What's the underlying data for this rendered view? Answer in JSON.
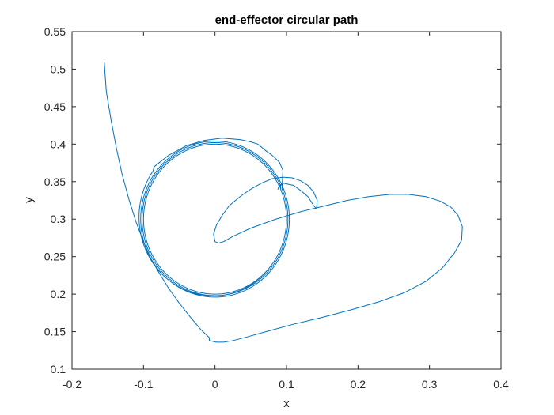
{
  "chart_data": {
    "type": "line",
    "title": "end-effector circular path",
    "xlabel": "x",
    "ylabel": "y",
    "xlim": [
      -0.2,
      0.4
    ],
    "ylim": [
      0.1,
      0.55
    ],
    "x_ticks": [
      -0.2,
      -0.1,
      0,
      0.1,
      0.2,
      0.3,
      0.4
    ],
    "y_ticks": [
      0.1,
      0.15,
      0.2,
      0.25,
      0.3,
      0.35,
      0.4,
      0.45,
      0.5,
      0.55
    ],
    "x_tick_labels": [
      "-0.2",
      "-0.1",
      "0",
      "0.1",
      "0.2",
      "0.3",
      "0.4"
    ],
    "y_tick_labels": [
      "0.1",
      "0.15",
      "0.2",
      "0.25",
      "0.3",
      "0.35",
      "0.4",
      "0.45",
      "0.5",
      "0.55"
    ],
    "grid": false,
    "line_color": "#0072BD",
    "series": [
      {
        "approach": {
          "x": [
            -0.155,
            -0.152,
            -0.145,
            -0.138,
            -0.13,
            -0.12,
            -0.11,
            -0.1,
            -0.09,
            -0.078,
            -0.065,
            -0.05,
            -0.035,
            -0.02,
            -0.008
          ],
          "y": [
            0.51,
            0.47,
            0.43,
            0.395,
            0.36,
            0.325,
            0.295,
            0.27,
            0.248,
            0.228,
            0.208,
            0.188,
            0.17,
            0.153,
            0.142
          ]
        },
        "return_loop": {
          "x": [
            -0.008,
            0.002,
            0.012,
            0.025,
            0.045,
            0.075,
            0.11,
            0.15,
            0.19,
            0.23,
            0.265,
            0.295,
            0.318,
            0.335,
            0.345,
            0.346,
            0.34,
            0.33,
            0.315,
            0.295,
            0.27,
            0.245,
            0.215,
            0.185,
            0.155,
            0.12,
            0.085,
            0.05,
            0.025,
            0.012,
            0.005,
            0.0,
            -0.002,
            0.002,
            0.01,
            0.02,
            0.035,
            0.05,
            0.065,
            0.08,
            0.095,
            0.108,
            0.12,
            0.13,
            0.138,
            0.143,
            0.142,
            0.138,
            0.13
          ],
          "y": [
            0.138,
            0.136,
            0.136,
            0.138,
            0.143,
            0.151,
            0.16,
            0.169,
            0.179,
            0.19,
            0.202,
            0.217,
            0.235,
            0.255,
            0.272,
            0.29,
            0.305,
            0.316,
            0.324,
            0.33,
            0.333,
            0.333,
            0.33,
            0.325,
            0.318,
            0.31,
            0.3,
            0.288,
            0.277,
            0.27,
            0.268,
            0.27,
            0.28,
            0.292,
            0.305,
            0.318,
            0.33,
            0.34,
            0.348,
            0.354,
            0.356,
            0.355,
            0.351,
            0.345,
            0.336,
            0.325,
            0.314,
            0.318,
            0.33
          ]
        },
        "transition": {
          "x": [
            0.13,
            0.12,
            0.11,
            0.1,
            0.095,
            0.09,
            0.088
          ],
          "y": [
            0.33,
            0.338,
            0.345,
            0.347,
            0.348,
            0.345,
            0.34
          ]
        },
        "circle": {
          "center": [
            0.0,
            0.3
          ],
          "radius": 0.1,
          "loops": 3
        },
        "overshoot": {
          "x": [
            0.095,
            0.09,
            0.08,
            0.07,
            0.06,
            0.05,
            0.035,
            0.01,
            -0.015,
            -0.04,
            -0.065,
            -0.085
          ],
          "y": [
            0.365,
            0.376,
            0.385,
            0.392,
            0.4,
            0.403,
            0.406,
            0.408,
            0.405,
            0.398,
            0.385,
            0.37
          ]
        }
      }
    ]
  }
}
